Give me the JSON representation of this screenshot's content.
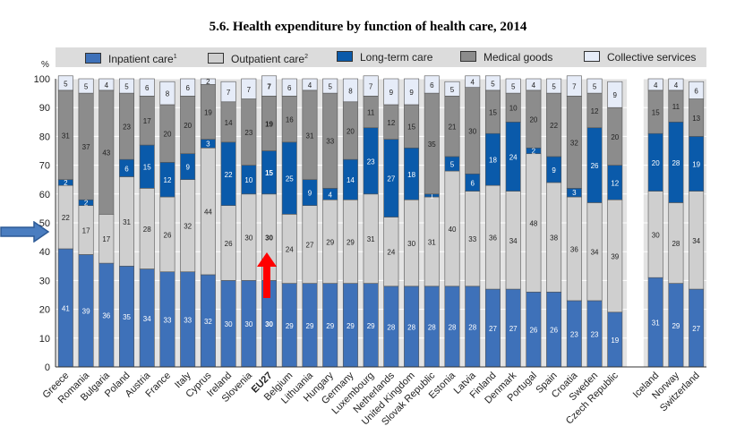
{
  "chart_data": {
    "type": "bar",
    "stacked": true,
    "percent_stacked": true,
    "title": "5.6. Health expenditure by function of health care, 2014",
    "ylabel": "%",
    "ylim": [
      0,
      100
    ],
    "yticks": [
      0,
      10,
      20,
      30,
      40,
      50,
      60,
      70,
      80,
      90,
      100
    ],
    "categories": [
      "Greece",
      "Romania",
      "Bulgaria",
      "Poland",
      "Austria",
      "France",
      "Italy",
      "Cyprus",
      "Ireland",
      "Slovenia",
      "EU27",
      "Belgium",
      "Lithuania",
      "Hungary",
      "Germany",
      "Luxembourg",
      "Netherlands",
      "United Kingdom",
      "Slovak Republic",
      "Estonia",
      "Latvia",
      "Finland",
      "Denmark",
      "Portugal",
      "Spain",
      "Croatia",
      "Sweden",
      "Czech Republic",
      "",
      "Iceland",
      "Norway",
      "Switzerland"
    ],
    "highlight_category": "EU27",
    "series": [
      {
        "name": "Inpatient care",
        "superscript": "1",
        "color": "#3e71b9",
        "label_color": "#ffffff",
        "values": [
          41,
          39,
          36,
          35,
          34,
          33,
          33,
          32,
          30,
          30,
          30,
          29,
          29,
          29,
          29,
          29,
          28,
          28,
          28,
          28,
          28,
          27,
          27,
          26,
          26,
          23,
          23,
          19,
          null,
          31,
          29,
          27
        ]
      },
      {
        "name": "Outpatient care",
        "superscript": "2",
        "color": "#cfcfcf",
        "label_color": "#222222",
        "values": [
          22,
          17,
          17,
          31,
          28,
          26,
          32,
          44,
          26,
          30,
          30,
          24,
          27,
          29,
          29,
          31,
          24,
          30,
          31,
          40,
          33,
          36,
          34,
          48,
          38,
          36,
          34,
          39,
          null,
          30,
          28,
          34
        ]
      },
      {
        "name": "Long-term care",
        "superscript": "",
        "color": "#0a5aaa",
        "label_color": "#ffffff",
        "values": [
          2,
          2,
          0,
          6,
          15,
          12,
          9,
          3,
          22,
          10,
          15,
          25,
          9,
          4,
          14,
          23,
          27,
          18,
          1,
          5,
          6,
          18,
          24,
          2,
          9,
          3,
          26,
          12,
          null,
          20,
          28,
          19
        ]
      },
      {
        "name": "Medical goods",
        "superscript": "",
        "color": "#8c8c8c",
        "label_color": "#222222",
        "values": [
          31,
          37,
          43,
          23,
          17,
          20,
          20,
          19,
          14,
          23,
          19,
          16,
          31,
          33,
          20,
          11,
          12,
          15,
          35,
          21,
          30,
          15,
          10,
          20,
          22,
          32,
          12,
          20,
          null,
          15,
          11,
          13
        ]
      },
      {
        "name": "Collective services",
        "superscript": "",
        "color": "#e6ecf8",
        "label_color": "#222222",
        "values": [
          5,
          5,
          4,
          5,
          6,
          8,
          6,
          2,
          7,
          7,
          7,
          6,
          4,
          5,
          8,
          7,
          9,
          9,
          6,
          5,
          4,
          5,
          5,
          4,
          5,
          7,
          5,
          9,
          null,
          4,
          4,
          6
        ]
      }
    ]
  }
}
